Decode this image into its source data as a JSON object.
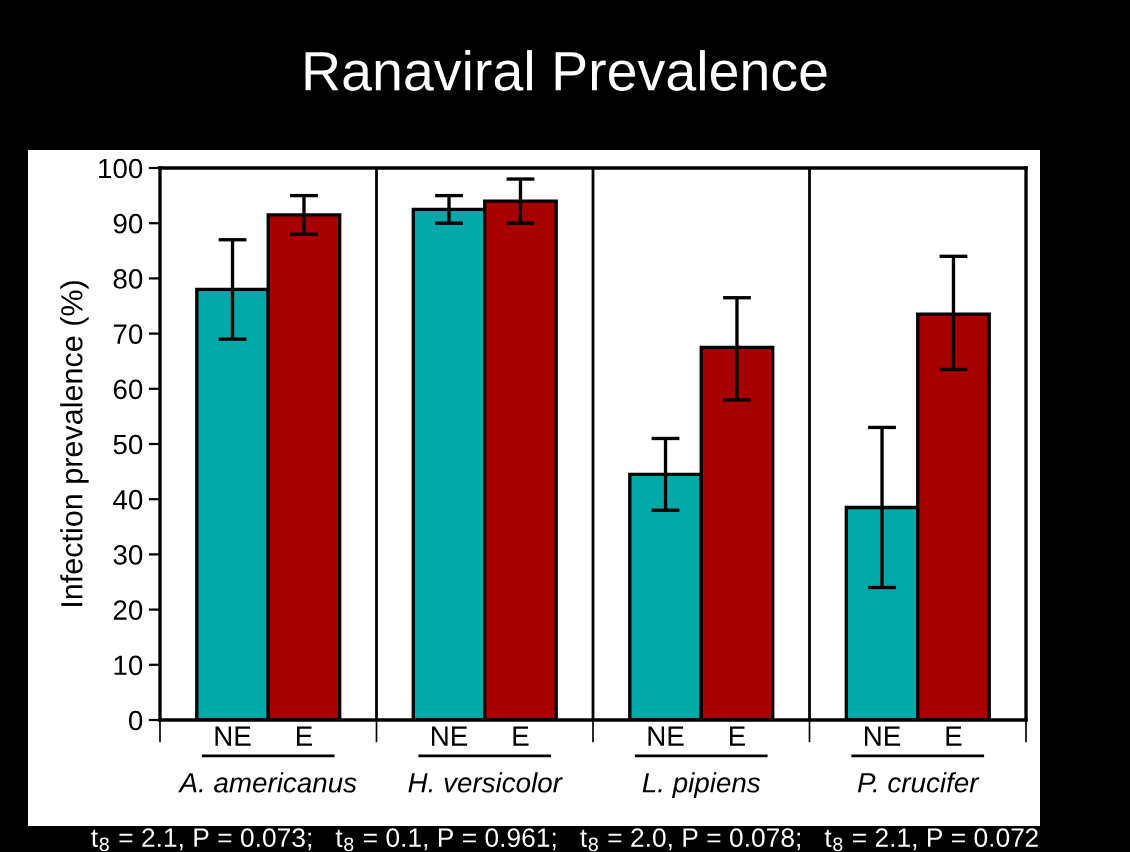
{
  "chart_data": {
    "type": "bar",
    "title": "Ranaviral Prevalence",
    "ylabel": "Infection prevalence (%)",
    "categories": [
      "A. americanus",
      "H. versicolor",
      "L. pipiens",
      "P. crucifer"
    ],
    "series": [
      {
        "name": "NE",
        "color": "#00a8a8",
        "values": [
          78,
          92.5,
          44.5,
          38.5
        ],
        "errors": [
          [
            69,
            87
          ],
          [
            90,
            95
          ],
          [
            38,
            51
          ],
          [
            24,
            53
          ]
        ]
      },
      {
        "name": "E",
        "color": "#a80000",
        "values": [
          91.5,
          94,
          67.5,
          73.5
        ],
        "errors": [
          [
            88,
            95
          ],
          [
            90,
            98
          ],
          [
            58,
            76.5
          ],
          [
            63.5,
            84
          ]
        ]
      }
    ],
    "ylim": [
      0,
      100
    ],
    "yticks": [
      0,
      10,
      20,
      30,
      40,
      50,
      60,
      70,
      80,
      90,
      100
    ],
    "grid": false,
    "legend": "bottom",
    "annotations": [
      "t$_{8}$ = 2.1, P = 0.073;   t$_{8}$ = 0.1, P = 0.961;   t$_{8}$ = 2.0, P = 0.078;   t$_{8}$ = 2.1, P = 0.072"
    ]
  }
}
